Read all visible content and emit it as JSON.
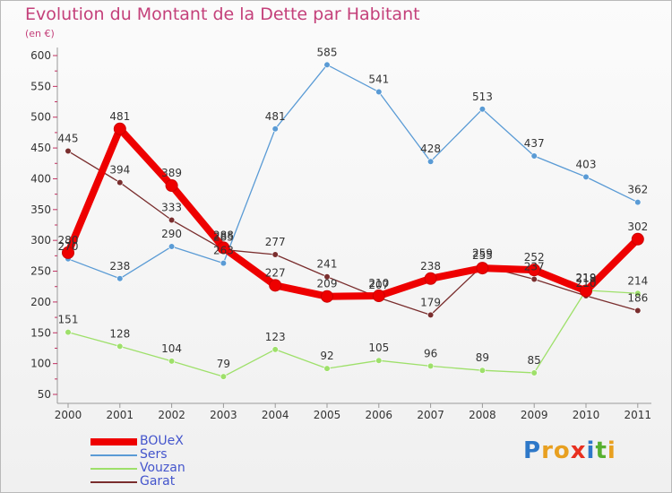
{
  "header": {
    "title": "Evolution du Montant de la Dette par Habitant",
    "subtitle": "(en €)"
  },
  "chart_data": {
    "type": "line",
    "title": "Evolution du Montant de la Dette par Habitant",
    "subtitle": "(en €)",
    "xlabel": "",
    "ylabel": "",
    "categories": [
      "2000",
      "2001",
      "2002",
      "2003",
      "2004",
      "2005",
      "2006",
      "2007",
      "2008",
      "2009",
      "2010",
      "2011"
    ],
    "ylim": [
      50,
      600
    ],
    "yticks": [
      50,
      100,
      150,
      200,
      250,
      300,
      350,
      400,
      450,
      500,
      550,
      600
    ],
    "grid": false,
    "legend_position": "bottom-left",
    "series": [
      {
        "name": "BOUeX",
        "color": "#ee0000",
        "values": [
          280,
          481,
          389,
          288,
          227,
          209,
          210,
          238,
          255,
          252,
          218,
          302
        ]
      },
      {
        "name": "Sers",
        "color": "#5a9bd5",
        "values": [
          270,
          238,
          290,
          263,
          481,
          585,
          541,
          428,
          513,
          437,
          403,
          362
        ]
      },
      {
        "name": "Vouzan",
        "color": "#9ee06a",
        "values": [
          151,
          128,
          104,
          79,
          123,
          92,
          105,
          96,
          89,
          85,
          219,
          214
        ]
      },
      {
        "name": "Garat",
        "color": "#7a2e2e",
        "values": [
          445,
          394,
          333,
          285,
          277,
          241,
          207,
          179,
          259,
          237,
          210,
          186
        ]
      }
    ]
  },
  "legend": {
    "items": [
      {
        "label": "BOUeX",
        "color": "#ee0000"
      },
      {
        "label": "Sers",
        "color": "#5a9bd5"
      },
      {
        "label": "Vouzan",
        "color": "#9ee06a"
      },
      {
        "label": "Garat",
        "color": "#7a2e2e"
      }
    ]
  },
  "logo": {
    "text": "Proxiti",
    "letter_colors": [
      "#2e78c8",
      "#e8a020",
      "#e8a020",
      "#e83020",
      "#2e78c8",
      "#58b030",
      "#e8a020"
    ]
  }
}
